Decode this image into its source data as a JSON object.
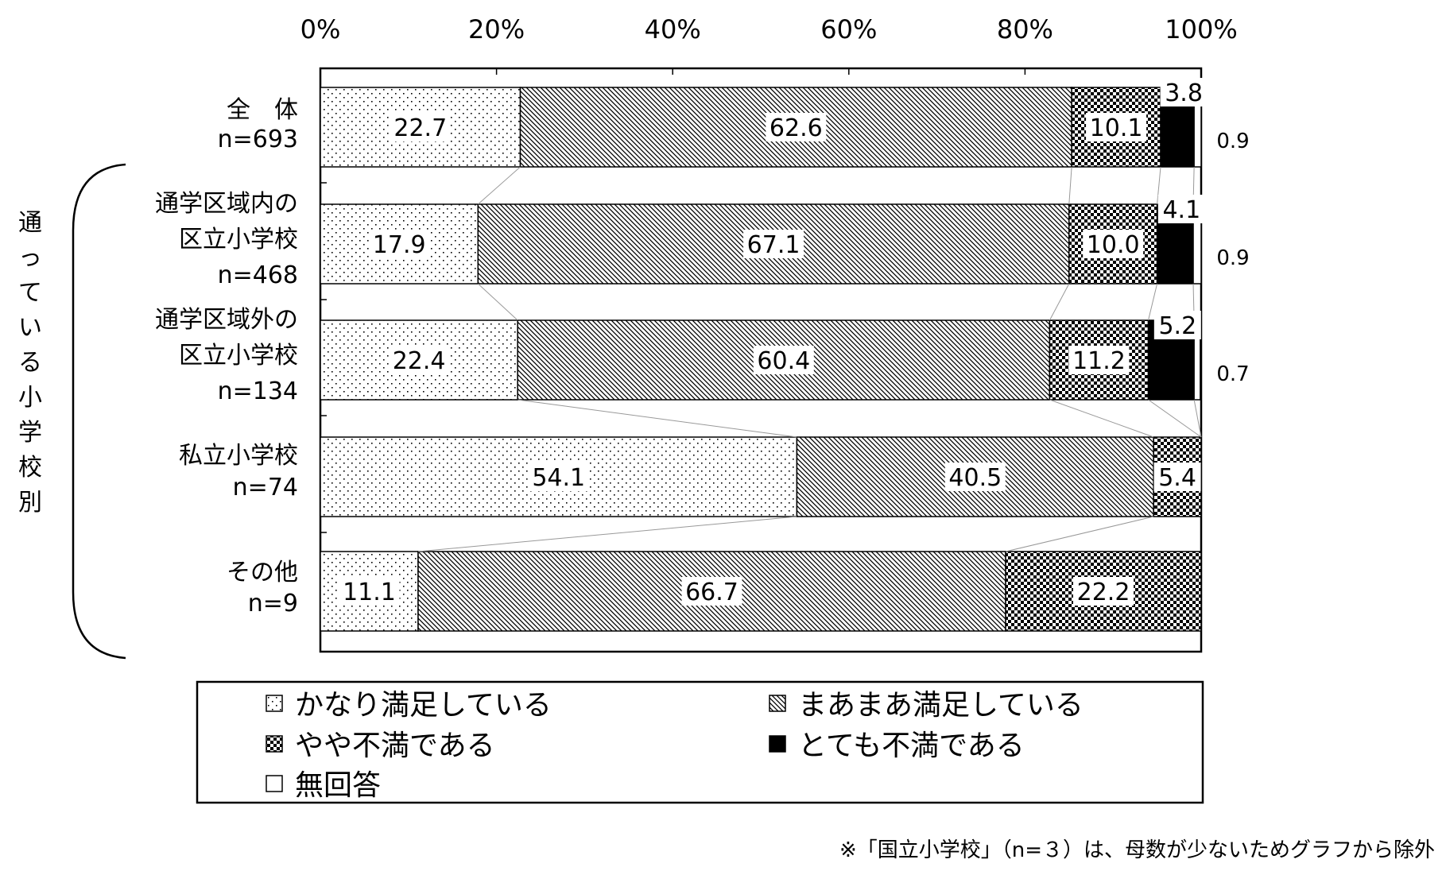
{
  "chart_data": {
    "type": "bar",
    "orientation": "horizontal",
    "stacked": true,
    "percent_scale": true,
    "x_ticks": [
      "0%",
      "20%",
      "40%",
      "60%",
      "80%",
      "100%"
    ],
    "xlim": [
      0,
      100
    ],
    "group_label": "通っている小学校別",
    "categories": [
      {
        "name": "全　体",
        "n": "n=693"
      },
      {
        "name": "通学区域内の\n区立小学校",
        "n": "n=468"
      },
      {
        "name": "通学区域外の\n区立小学校",
        "n": "n=134"
      },
      {
        "name": "私立小学校",
        "n": "n=74"
      },
      {
        "name": "その他",
        "n": "n=9"
      }
    ],
    "series": [
      {
        "name": "かなり満足している",
        "pattern": "dots",
        "values": [
          22.7,
          17.9,
          22.4,
          54.1,
          11.1
        ],
        "labels": [
          "22.7",
          "17.9",
          "22.4",
          "54.1",
          "11.1"
        ]
      },
      {
        "name": "まあまあ満足している",
        "pattern": "diagonal",
        "values": [
          62.6,
          67.1,
          60.4,
          40.5,
          66.7
        ],
        "labels": [
          "62.6",
          "67.1",
          "60.4",
          "40.5",
          "66.7"
        ]
      },
      {
        "name": "やや不満である",
        "pattern": "checker",
        "values": [
          10.1,
          10.0,
          11.2,
          5.4,
          22.2
        ],
        "labels": [
          "10.1",
          "10.0",
          "11.2",
          "5.4",
          "22.2"
        ]
      },
      {
        "name": "とても不満である",
        "pattern": "solid",
        "values": [
          3.8,
          4.1,
          5.2,
          0,
          0
        ],
        "labels": [
          "3.8",
          "4.1",
          "5.2",
          "",
          ""
        ]
      },
      {
        "name": "無回答",
        "pattern": "white",
        "values": [
          0.9,
          0.9,
          0.7,
          0,
          0
        ],
        "labels": [
          "0.9",
          "0.9",
          "0.7",
          "",
          ""
        ]
      }
    ],
    "legend": {
      "placement": "bottom",
      "columns": 2
    },
    "note": "※「国立小学校」（n=３）は、母数が少ないためグラフから除外"
  }
}
